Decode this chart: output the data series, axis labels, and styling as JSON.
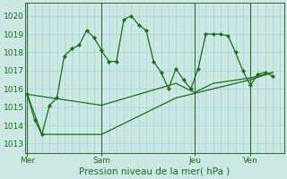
{
  "bg_color": "#cce8e4",
  "grid_color": "#99cccc",
  "line_color": "#1a6e1a",
  "sep_color": "#336633",
  "xlabel": "Pression niveau de la mer( hPa )",
  "ylim": [
    1012.5,
    1020.7
  ],
  "yticks": [
    1013,
    1014,
    1015,
    1016,
    1017,
    1018,
    1019,
    1020
  ],
  "day_positions": [
    0,
    0.333,
    0.75,
    1.0
  ],
  "day_labels": [
    "Mer",
    "Sam",
    "Jeu",
    "Ven"
  ],
  "xlim": [
    -0.01,
    1.15
  ],
  "line1_x": [
    0.0,
    0.033,
    0.066,
    0.1,
    0.133,
    0.166,
    0.2,
    0.233,
    0.266,
    0.3,
    0.333,
    0.366,
    0.4,
    0.433,
    0.466,
    0.5,
    0.533,
    0.566,
    0.6,
    0.633,
    0.666,
    0.7,
    0.733,
    0.766,
    0.8,
    0.833,
    0.866,
    0.9,
    0.933,
    0.966,
    1.0,
    1.033,
    1.066,
    1.1
  ],
  "line1_y": [
    1015.7,
    1014.3,
    1013.5,
    1015.1,
    1015.5,
    1017.8,
    1018.2,
    1018.4,
    1019.2,
    1018.8,
    1018.1,
    1017.5,
    1017.5,
    1019.8,
    1020.0,
    1019.5,
    1019.2,
    1017.5,
    1016.9,
    1016.0,
    1017.1,
    1016.5,
    1016.0,
    1017.1,
    1019.0,
    1019.0,
    1019.0,
    1018.9,
    1018.0,
    1017.0,
    1016.2,
    1016.8,
    1016.9,
    1016.7
  ],
  "line2_x": [
    0.0,
    0.333,
    0.666,
    0.75,
    0.833,
    1.0,
    1.1
  ],
  "line2_y": [
    1015.7,
    1015.1,
    1016.3,
    1015.8,
    1016.3,
    1016.6,
    1016.9
  ],
  "line3_x": [
    0.0,
    0.066,
    0.333,
    0.666,
    1.0,
    1.1
  ],
  "line3_y": [
    1015.7,
    1013.5,
    1013.5,
    1015.5,
    1016.5,
    1016.9
  ]
}
